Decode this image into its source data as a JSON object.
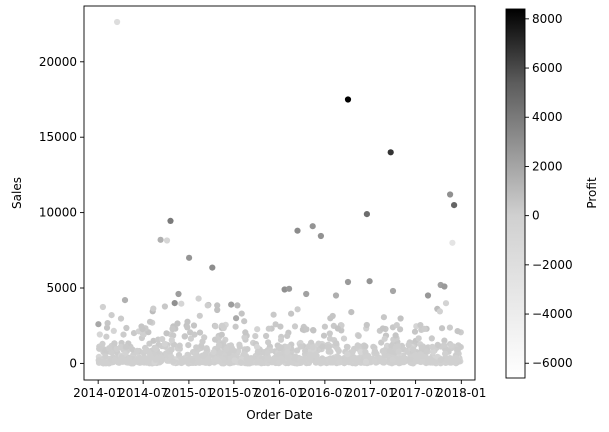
{
  "chart_data": {
    "type": "scatter",
    "xlabel": "Order Date",
    "ylabel": "Sales",
    "colorbar_label": "Profit",
    "colormap": "greys",
    "xlim": [
      "2013-11-05",
      "2018-02-25"
    ],
    "ylim": [
      -1100,
      23700
    ],
    "x_ticks": [
      "2014-01",
      "2014-07",
      "2015-01",
      "2015-07",
      "2016-01",
      "2016-07",
      "2017-01",
      "2017-07",
      "2018-01"
    ],
    "y_ticks": [
      0,
      5000,
      10000,
      15000,
      20000
    ],
    "colorbar_range": [
      -6600,
      8400
    ],
    "colorbar_ticks": [
      -6000,
      -4000,
      -2000,
      0,
      2000,
      4000,
      6000,
      8000
    ],
    "highlight_points": [
      {
        "date": "2014-03-18",
        "sales": 22638,
        "profit": -1800
      },
      {
        "date": "2016-10-02",
        "sales": 17500,
        "profit": 8400
      },
      {
        "date": "2017-03-23",
        "sales": 14000,
        "profit": 6720
      },
      {
        "date": "2016-12-17",
        "sales": 9900,
        "profit": 4630
      },
      {
        "date": "2014-10-19",
        "sales": 9450,
        "profit": 4000
      },
      {
        "date": "2017-11-17",
        "sales": 11200,
        "profit": 3000
      },
      {
        "date": "2017-12-03",
        "sales": 10500,
        "profit": 5000
      },
      {
        "date": "2016-05-13",
        "sales": 9100,
        "profit": 2800
      },
      {
        "date": "2016-03-13",
        "sales": 8800,
        "profit": 3200
      },
      {
        "date": "2016-06-15",
        "sales": 8450,
        "profit": 2900
      },
      {
        "date": "2014-09-09",
        "sales": 8200,
        "profit": 1500
      },
      {
        "date": "2014-10-05",
        "sales": 8150,
        "profit": -800
      },
      {
        "date": "2017-11-26",
        "sales": 8000,
        "profit": -2800
      },
      {
        "date": "2015-01-02",
        "sales": 7000,
        "profit": 2800
      },
      {
        "date": "2015-04-05",
        "sales": 6350,
        "profit": 3100
      },
      {
        "date": "2016-10-02",
        "sales": 5400,
        "profit": 2500
      },
      {
        "date": "2016-12-28",
        "sales": 5450,
        "profit": 2800
      },
      {
        "date": "2017-10-10",
        "sales": 5200,
        "profit": 2200
      },
      {
        "date": "2017-10-25",
        "sales": 5100,
        "profit": 2500
      },
      {
        "date": "2016-01-21",
        "sales": 4900,
        "profit": 3000
      },
      {
        "date": "2016-02-08",
        "sales": 4950,
        "profit": 2600
      },
      {
        "date": "2017-04-01",
        "sales": 4800,
        "profit": 2000
      },
      {
        "date": "2014-04-19",
        "sales": 4200,
        "profit": 1500
      },
      {
        "date": "2015-02-09",
        "sales": 4300,
        "profit": -300
      },
      {
        "date": "2014-01-02",
        "sales": 2600,
        "profit": 1900
      },
      {
        "date": "2015-07-10",
        "sales": 3000,
        "profit": 1800
      },
      {
        "date": "2015-06-20",
        "sales": 3900,
        "profit": 2400
      },
      {
        "date": "2016-08-15",
        "sales": 4500,
        "profit": 1600
      },
      {
        "date": "2016-04-17",
        "sales": 4600,
        "profit": 2200
      },
      {
        "date": "2017-08-20",
        "sales": 4500,
        "profit": 2600
      },
      {
        "date": "2014-11-20",
        "sales": 4600,
        "profit": 2400
      },
      {
        "date": "2014-11-05",
        "sales": 4000,
        "profit": 3000
      }
    ]
  }
}
